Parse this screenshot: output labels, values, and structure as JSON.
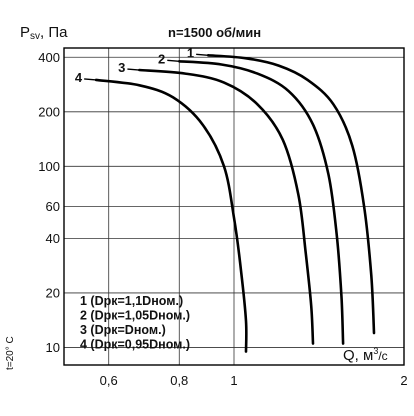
{
  "chart_data": {
    "type": "line",
    "title": "n=1500 об/мин",
    "ylabel": "Psv, Па",
    "ylabel_main": "P",
    "ylabel_sub": "sv",
    "ylabel_rest": ", Па",
    "xlabel_main": "Q, м",
    "xlabel_sup": "3",
    "xlabel_rest": "/с",
    "temperature_note": "t=20° С",
    "x_scale": "log",
    "y_scale": "log",
    "xlim": [
      0.5,
      2
    ],
    "ylim": [
      8,
      450
    ],
    "x_ticks": [
      0.6,
      0.8,
      1,
      2
    ],
    "x_tick_labels": [
      "0,6",
      "0,8",
      "1",
      "2"
    ],
    "y_ticks": [
      10,
      20,
      40,
      60,
      100,
      200,
      400
    ],
    "y_tick_labels": [
      "10",
      "20",
      "40",
      "60",
      "100",
      "200",
      "400"
    ],
    "grid": true,
    "legend": [
      "1 (Dрк=1,1Dном.)",
      "2 (Dрк=1,05Dном.)",
      "3 (Dрк=Dном.)",
      "4 (Dрк=0,95Dном.)"
    ],
    "legend_position": "bottom-left",
    "series": [
      {
        "name": "1",
        "x": [
          0.9,
          1.05,
          1.2,
          1.35,
          1.5,
          1.62,
          1.7,
          1.75,
          1.77
        ],
        "y": [
          410,
          395,
          360,
          300,
          220,
          130,
          60,
          25,
          12
        ]
      },
      {
        "name": "2",
        "x": [
          0.8,
          0.95,
          1.1,
          1.25,
          1.38,
          1.47,
          1.52,
          1.55,
          1.56
        ],
        "y": [
          380,
          365,
          325,
          260,
          170,
          90,
          42,
          19,
          10.5
        ]
      },
      {
        "name": "3",
        "x": [
          0.68,
          0.82,
          0.96,
          1.1,
          1.22,
          1.3,
          1.34,
          1.37,
          1.38
        ],
        "y": [
          340,
          325,
          290,
          220,
          140,
          70,
          33,
          17,
          10.5
        ]
      },
      {
        "name": "4",
        "x": [
          0.57,
          0.68,
          0.78,
          0.88,
          0.96,
          1.0,
          1.03,
          1.05,
          1.05
        ],
        "y": [
          300,
          280,
          240,
          170,
          100,
          52,
          26,
          14,
          9.5
        ]
      }
    ]
  }
}
